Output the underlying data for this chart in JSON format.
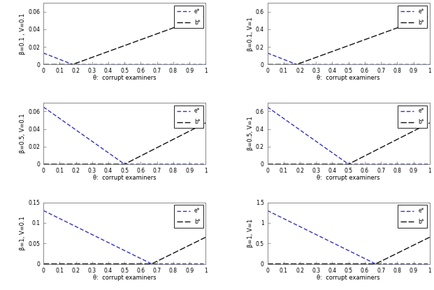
{
  "subplots": [
    {
      "beta": 0.1,
      "v": 0.1,
      "row": 0,
      "col": 0,
      "theta_star": 0.18,
      "e0": 0.013,
      "b1": 0.055,
      "ylim": [
        0,
        0.07
      ],
      "yticks": [
        0,
        0.02,
        0.04,
        0.06
      ],
      "ylabel": "β=0.1 , V=0.1"
    },
    {
      "beta": 0.1,
      "v": 1.0,
      "row": 0,
      "col": 1,
      "theta_star": 0.18,
      "e0": 0.13,
      "b1": 0.55,
      "ylim": [
        0,
        0.7
      ],
      "yticks": [
        0,
        0.2,
        0.4,
        0.6
      ],
      "ylabel": "β=0.1, V=1"
    },
    {
      "beta": 0.5,
      "v": 0.1,
      "row": 1,
      "col": 0,
      "theta_star": 0.5,
      "e0": 0.065,
      "b1": 0.047,
      "ylim": [
        0,
        0.07
      ],
      "yticks": [
        0,
        0.02,
        0.04,
        0.06
      ],
      "ylabel": "β=0.5, V=0.1"
    },
    {
      "beta": 0.5,
      "v": 1.0,
      "row": 1,
      "col": 1,
      "theta_star": 0.5,
      "e0": 0.65,
      "b1": 0.47,
      "ylim": [
        0,
        0.7
      ],
      "yticks": [
        0,
        0.2,
        0.4,
        0.6
      ],
      "ylabel": "β=0.5, V=1"
    },
    {
      "beta": 1.0,
      "v": 0.1,
      "row": 2,
      "col": 0,
      "theta_star": 0.667,
      "e0": 0.13,
      "b1": 0.065,
      "ylim": [
        0,
        0.15
      ],
      "yticks": [
        0,
        0.05,
        0.1,
        0.15
      ],
      "ylabel": "β=1, V=0.1"
    },
    {
      "beta": 1.0,
      "v": 1.0,
      "row": 2,
      "col": 1,
      "theta_star": 0.667,
      "e0": 1.3,
      "b1": 0.65,
      "ylim": [
        0,
        1.5
      ],
      "yticks": [
        0,
        0.5,
        1.0,
        1.5
      ],
      "ylabel": "β=1, V=1"
    }
  ],
  "xlabel": "θ:  corrupt examiners",
  "legend_e": "e*",
  "legend_b": "b*",
  "blue_color": "#3333bb",
  "black_color": "#111111",
  "figsize": [
    6.21,
    4.15
  ],
  "dpi": 100
}
